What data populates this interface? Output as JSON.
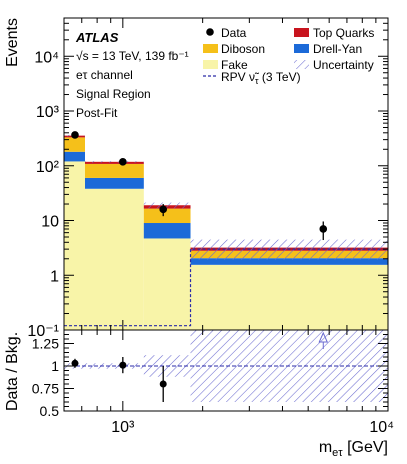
{
  "chart_data": {
    "type": "bar",
    "x_scale": "log",
    "bin_edges": [
      600,
      720,
      1200,
      1800,
      10000
    ],
    "x_ticks": [
      {
        "value": 1000,
        "label": "10³"
      },
      {
        "value": 10000,
        "label": "10⁴"
      }
    ],
    "xlabel": "m_eτ [GeV]",
    "xlabel_parts": {
      "main": "m",
      "sub": "eτ",
      "unit": "[GeV]"
    },
    "top_panel": {
      "ylabel": "Events",
      "y_scale": "log",
      "ylim": [
        0.1,
        50000
      ],
      "y_ticks": [
        {
          "value": 0.1,
          "label": "10⁻¹"
        },
        {
          "value": 1,
          "label": "1"
        },
        {
          "value": 10,
          "label": "10"
        },
        {
          "value": 100,
          "label": "10²"
        },
        {
          "value": 1000,
          "label": "10³"
        },
        {
          "value": 10000,
          "label": "10⁴"
        }
      ],
      "stack_order_bottom_to_top": [
        "Fake",
        "Drell-Yan",
        "Diboson",
        "Top Quarks"
      ],
      "series": [
        {
          "name": "Fake",
          "values": [
            120,
            38,
            4.7,
            1.55
          ],
          "color": "#f8f4a8"
        },
        {
          "name": "Drell-Yan",
          "values": [
            60,
            22,
            4.3,
            0.5
          ],
          "color": "#1c6ad8"
        },
        {
          "name": "Diboson",
          "values": [
            150,
            48,
            7.5,
            0.75
          ],
          "color": "#f5c01a"
        },
        {
          "name": "Top Quarks",
          "values": [
            25,
            10,
            2.5,
            0.4
          ],
          "color": "#c8141e"
        }
      ],
      "uncertainty": {
        "name": "Uncertainty",
        "relative": [
          0.03,
          0.03,
          0.12,
          0.4
        ],
        "color": "#6b6bd0"
      },
      "signal": {
        "name": "RPV ν̃τ (3 TeV)",
        "legend_parts": {
          "main": "RPV ν̃",
          "sub": "τ",
          "rest": " (3 TeV)"
        },
        "values": [
          0.12,
          0.12,
          0.12,
          3.0
        ],
        "color": "#2b2ba8"
      },
      "data": {
        "name": "Data",
        "x": [
          660,
          1000,
          1420,
          5700
        ],
        "y": [
          365,
          118,
          16,
          7
        ],
        "yerr": [
          19,
          11,
          4,
          2.6
        ],
        "color": "#000000"
      }
    },
    "ratio_panel": {
      "ylabel": "Data / Bkg.",
      "ylim": [
        0.5,
        1.4
      ],
      "y_ticks": [
        {
          "value": 0.5,
          "label": "0.5"
        },
        {
          "value": 0.75,
          "label": "0.75"
        },
        {
          "value": 1,
          "label": "1"
        },
        {
          "value": 1.25,
          "label": "1.25"
        }
      ],
      "points": {
        "x": [
          660,
          1000,
          1420
        ],
        "y": [
          1.03,
          1.01,
          0.8
        ],
        "yerr": [
          0.05,
          0.09,
          0.2
        ]
      },
      "off_scale_arrow_x": 5700,
      "uncertainty_band": [
        0.03,
        0.03,
        0.12,
        0.4
      ]
    },
    "annotations": {
      "experiment": "ATLAS",
      "lines": [
        "√s = 13 TeV, 139 fb⁻¹",
        "eτ channel",
        "Signal Region",
        "Post-Fit"
      ]
    },
    "legend": {
      "placement": "top-right",
      "entries": [
        {
          "label": "Data",
          "kind": "marker"
        },
        {
          "label": "Top Quarks",
          "kind": "box",
          "color": "#c8141e"
        },
        {
          "label": "Diboson",
          "kind": "box",
          "color": "#f5c01a"
        },
        {
          "label": "Drell-Yan",
          "kind": "box",
          "color": "#1c6ad8"
        },
        {
          "label": "Fake",
          "kind": "box",
          "color": "#f8f4a8"
        },
        {
          "label": "Uncertainty",
          "kind": "hatch",
          "color": "#6b6bd0"
        },
        {
          "label": "RPV ν̃τ (3 TeV)",
          "kind": "dashed",
          "color": "#2b2ba8"
        }
      ]
    }
  }
}
